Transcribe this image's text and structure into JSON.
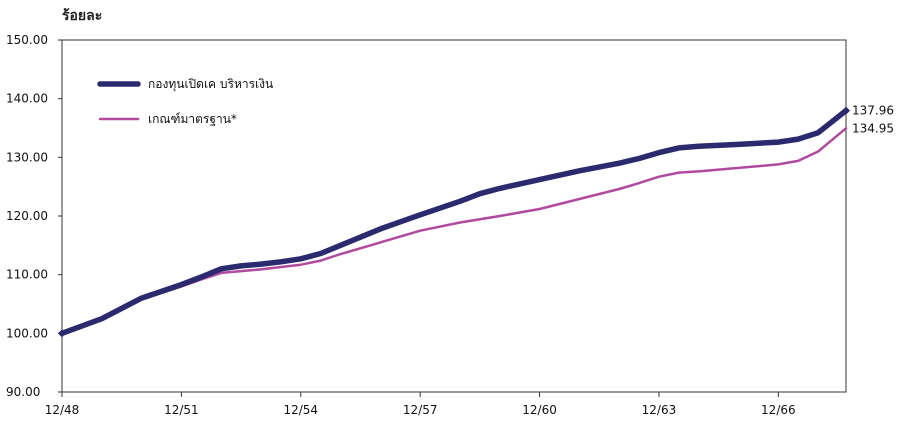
{
  "chart_data": {
    "type": "line",
    "ylabel": "ร้อยละ",
    "ylim": [
      90,
      150
    ],
    "yticks": [
      "90.00",
      "100.00",
      "110.00",
      "120.00",
      "130.00",
      "140.00",
      "150.00"
    ],
    "xticks": [
      "12/48",
      "12/51",
      "12/54",
      "12/57",
      "12/60",
      "12/63",
      "12/66"
    ],
    "xlim": [
      0,
      19.7
    ],
    "grid": false,
    "legend_position": "top-left",
    "series": [
      {
        "name": "กองทุนเปิดเค บริหารเงิน",
        "color": "#2b2a6e",
        "end_label": "137.96",
        "points": [
          [
            0,
            100.0
          ],
          [
            1.0,
            102.5
          ],
          [
            2.0,
            106.0
          ],
          [
            3.0,
            108.3
          ],
          [
            3.5,
            109.6
          ],
          [
            4.0,
            111.0
          ],
          [
            4.5,
            111.5
          ],
          [
            5.0,
            111.8
          ],
          [
            5.5,
            112.2
          ],
          [
            6.0,
            112.7
          ],
          [
            6.5,
            113.6
          ],
          [
            7.0,
            115.0
          ],
          [
            8.0,
            117.8
          ],
          [
            9.0,
            120.2
          ],
          [
            10.0,
            122.5
          ],
          [
            10.5,
            123.8
          ],
          [
            11.0,
            124.7
          ],
          [
            12.0,
            126.2
          ],
          [
            13.0,
            127.7
          ],
          [
            14.0,
            129.0
          ],
          [
            14.5,
            129.8
          ],
          [
            15.0,
            130.8
          ],
          [
            15.5,
            131.6
          ],
          [
            16.0,
            131.9
          ],
          [
            17.0,
            132.2
          ],
          [
            18.0,
            132.6
          ],
          [
            18.5,
            133.1
          ],
          [
            19.0,
            134.2
          ],
          [
            19.7,
            137.96
          ]
        ]
      },
      {
        "name": "เกณฑ์มาตรฐาน*",
        "color": "#b04a9e",
        "end_label": "134.95",
        "points": [
          [
            0,
            100.0
          ],
          [
            1.0,
            102.3
          ],
          [
            2.0,
            105.8
          ],
          [
            3.0,
            108.0
          ],
          [
            3.5,
            109.2
          ],
          [
            4.0,
            110.3
          ],
          [
            4.5,
            110.6
          ],
          [
            5.0,
            110.9
          ],
          [
            5.5,
            111.3
          ],
          [
            6.0,
            111.7
          ],
          [
            6.5,
            112.4
          ],
          [
            7.0,
            113.5
          ],
          [
            8.0,
            115.5
          ],
          [
            9.0,
            117.5
          ],
          [
            10.0,
            118.9
          ],
          [
            11.0,
            120.0
          ],
          [
            12.0,
            121.2
          ],
          [
            13.0,
            122.9
          ],
          [
            14.0,
            124.6
          ],
          [
            14.5,
            125.6
          ],
          [
            15.0,
            126.7
          ],
          [
            15.5,
            127.4
          ],
          [
            16.0,
            127.6
          ],
          [
            17.0,
            128.2
          ],
          [
            18.0,
            128.8
          ],
          [
            18.5,
            129.4
          ],
          [
            19.0,
            131.0
          ],
          [
            19.7,
            134.95
          ]
        ]
      }
    ]
  }
}
